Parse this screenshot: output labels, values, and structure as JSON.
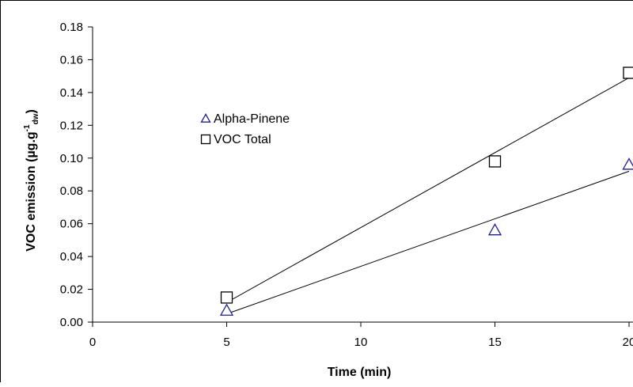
{
  "chart_data": {
    "type": "scatter",
    "xlabel": "Time (min)",
    "ylabel_parts": {
      "main": "VOC emission (µg.g",
      "sup": "-1",
      "sub": "dw",
      "close": ")"
    },
    "xlim": [
      0,
      20
    ],
    "ylim": [
      0,
      0.18
    ],
    "x_ticks": [
      0,
      5,
      10,
      15,
      20
    ],
    "x_tick_labels": [
      "0",
      "5",
      "10",
      "15",
      "20"
    ],
    "y_ticks": [
      0,
      0.02,
      0.04,
      0.06,
      0.08,
      0.1,
      0.12,
      0.14,
      0.16,
      0.18
    ],
    "y_tick_labels": [
      "0.00",
      "0.02",
      "0.04",
      "0.06",
      "0.08",
      "0.10",
      "0.12",
      "0.14",
      "0.16",
      "0.18"
    ],
    "grid": false,
    "legend_position": "top-left",
    "series": [
      {
        "name": "Alpha-Pinene",
        "marker": "triangle",
        "color": "#1f1f8f",
        "x": [
          5,
          15,
          20
        ],
        "y": [
          0.007,
          0.056,
          0.096
        ],
        "trendline": {
          "x": [
            5,
            20
          ],
          "y": [
            0.005,
            0.092
          ]
        }
      },
      {
        "name": "VOC Total",
        "marker": "square",
        "color": "#000000",
        "x": [
          5,
          15,
          20
        ],
        "y": [
          0.015,
          0.098,
          0.152
        ],
        "trendline": {
          "x": [
            5,
            20
          ],
          "y": [
            0.012,
            0.149
          ]
        }
      }
    ]
  }
}
